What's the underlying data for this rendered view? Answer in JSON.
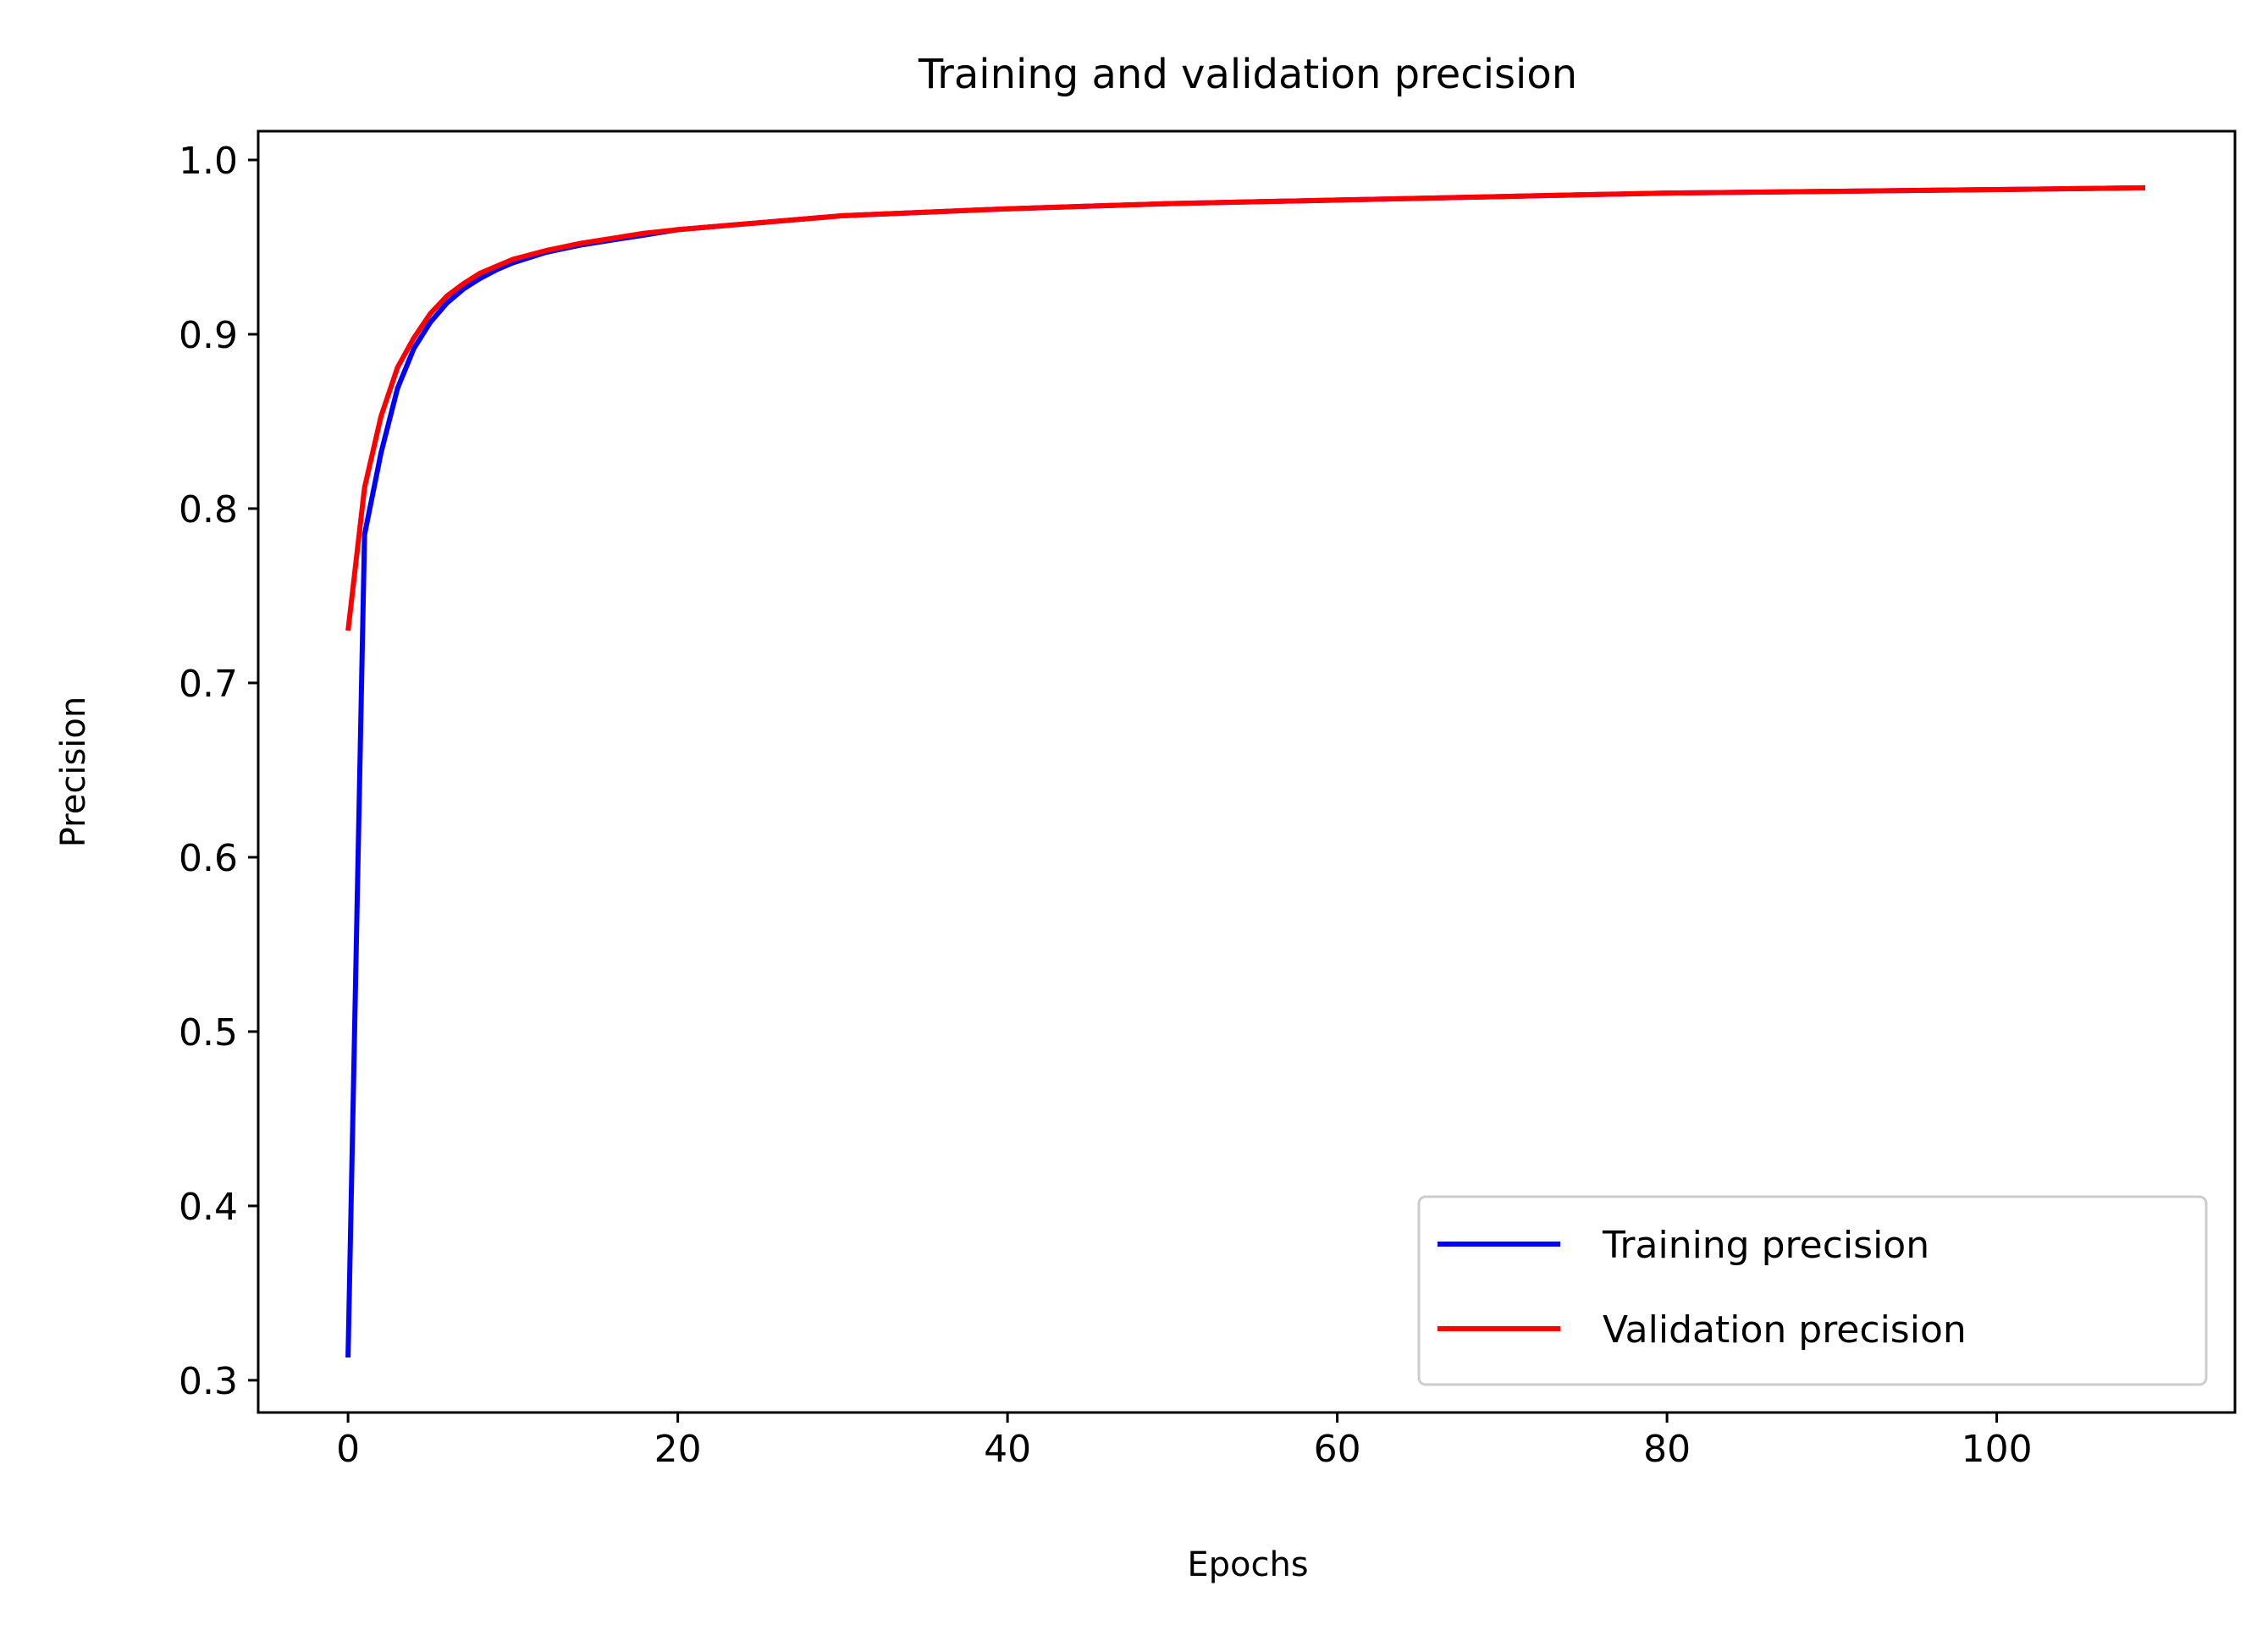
{
  "chart_data": {
    "type": "line",
    "title": "Training and validation precision",
    "xlabel": "Epochs",
    "ylabel": "Precision",
    "xlim": [
      -5.45,
      114.45
    ],
    "ylim": [
      0.2815,
      1.0165
    ],
    "xticks": [
      0,
      20,
      40,
      60,
      80,
      100
    ],
    "xtick_labels": [
      "0",
      "20",
      "40",
      "60",
      "80",
      "100"
    ],
    "yticks": [
      0.3,
      0.4,
      0.5,
      0.6,
      0.7,
      0.8,
      0.9,
      1.0
    ],
    "ytick_labels": [
      "0.3",
      "0.4",
      "0.5",
      "0.6",
      "0.7",
      "0.8",
      "0.9",
      "1.0"
    ],
    "grid": false,
    "legend_position": "lower-right",
    "series": [
      {
        "name": "Training precision",
        "color": "#0000ff",
        "x": [
          0,
          1,
          2,
          3,
          4,
          5,
          6,
          7,
          8,
          9,
          10,
          12,
          14,
          16,
          18,
          20,
          25,
          30,
          40,
          50,
          60,
          70,
          80,
          90,
          100,
          109
        ],
        "y": [
          0.313,
          0.785,
          0.832,
          0.869,
          0.892,
          0.907,
          0.918,
          0.926,
          0.932,
          0.937,
          0.941,
          0.947,
          0.951,
          0.954,
          0.957,
          0.96,
          0.964,
          0.968,
          0.972,
          0.975,
          0.977,
          0.979,
          0.981,
          0.982,
          0.983,
          0.984
        ]
      },
      {
        "name": "Validation precision",
        "color": "#ff0000",
        "x": [
          0,
          1,
          2,
          3,
          4,
          5,
          6,
          7,
          8,
          9,
          10,
          12,
          14,
          16,
          18,
          20,
          25,
          30,
          40,
          50,
          60,
          70,
          80,
          90,
          100,
          109
        ],
        "y": [
          0.73,
          0.812,
          0.853,
          0.881,
          0.898,
          0.912,
          0.922,
          0.929,
          0.935,
          0.939,
          0.943,
          0.948,
          0.952,
          0.955,
          0.958,
          0.96,
          0.964,
          0.968,
          0.972,
          0.975,
          0.977,
          0.979,
          0.981,
          0.982,
          0.983,
          0.984
        ]
      }
    ]
  }
}
